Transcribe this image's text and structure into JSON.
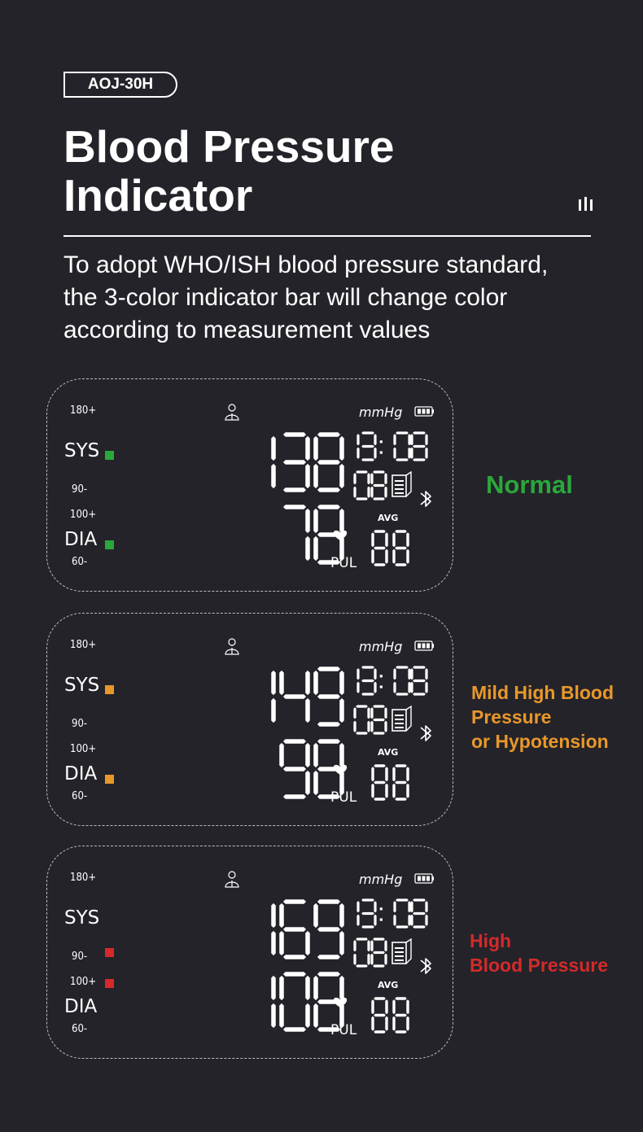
{
  "header": {
    "model": "AOJ-30H",
    "title_line1": "Blood Pressure",
    "title_line2": "Indicator",
    "description_line1": "To adopt WHO/ISH blood pressure standard,",
    "description_line2": "the 3-color indicator bar will change color",
    "description_line3": "according to measurement values"
  },
  "panels": [
    {
      "sys_scale_high": "180+",
      "sys_label": "SYS",
      "sys_scale_low": "90-",
      "dia_scale_high": "100+",
      "dia_label": "DIA",
      "dia_scale_low": "60-",
      "sys_value": "138",
      "dia_value": "78",
      "time": "13:08",
      "memory": "08",
      "unit": "mmHg",
      "avg_label": "AVG",
      "pul_label": "PUL",
      "pulse": "88",
      "indicator_color": "#2aa83a",
      "indicator_positions": [
        "sys",
        "dia"
      ],
      "status_line1": "Normal",
      "status_line2": "",
      "status_line3": "",
      "status_color": "#2aa83a"
    },
    {
      "sys_scale_high": "180+",
      "sys_label": "SYS",
      "sys_scale_low": "90-",
      "dia_scale_high": "100+",
      "dia_label": "DIA",
      "dia_scale_low": "60-",
      "sys_value": "149",
      "dia_value": "98",
      "time": "13:08",
      "memory": "08",
      "unit": "mmHg",
      "avg_label": "AVG",
      "pul_label": "PUL",
      "pulse": "88",
      "indicator_color": "#e8982a",
      "indicator_positions": [
        "sys",
        "dia"
      ],
      "status_line1": "Mild High Blood",
      "status_line2": "Pressure",
      "status_line3": "or Hypotension",
      "status_color": "#e8982a"
    },
    {
      "sys_scale_high": "180+",
      "sys_label": "SYS",
      "sys_scale_low": "90-",
      "dia_scale_high": "100+",
      "dia_label": "DIA",
      "dia_scale_low": "60-",
      "sys_value": "169",
      "dia_value": "108",
      "time": "13:08",
      "memory": "08",
      "unit": "mmHg",
      "avg_label": "AVG",
      "pul_label": "PUL",
      "pulse": "88",
      "indicator_color": "#d42a2a",
      "indicator_positions": [
        "sys_high",
        "dia_high"
      ],
      "status_line1": "High",
      "status_line2": "Blood Pressure",
      "status_line3": "",
      "status_color": "#d42a2a"
    }
  ]
}
